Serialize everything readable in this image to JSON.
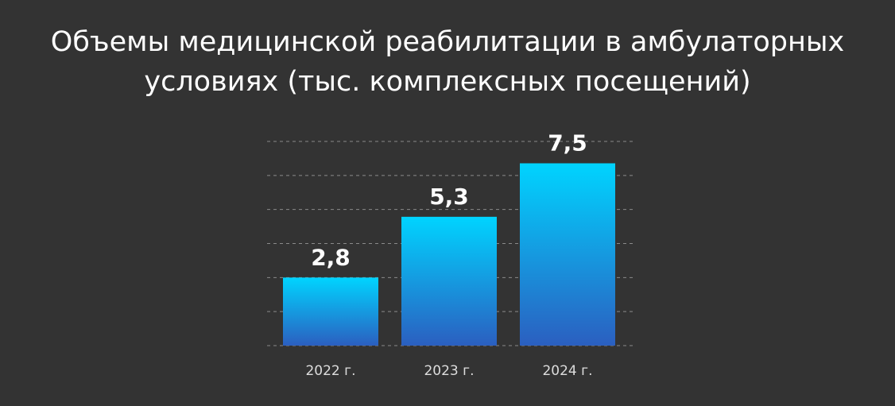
{
  "chart_data": {
    "type": "bar",
    "title": "Объемы медицинской реабилитации в амбулаторных условиях (тыс. комплексных посещений)",
    "categories": [
      "2022 г.",
      "2023 г.",
      "2024 г."
    ],
    "values": [
      2.8,
      5.3,
      7.5
    ],
    "value_labels": [
      "2,8",
      "5,3",
      "7,5"
    ],
    "color": "#00d4ff",
    "ylim": [
      0,
      8.4
    ],
    "yticks": [
      0,
      1.4,
      2.8,
      4.2,
      5.6,
      7,
      8.4
    ],
    "grid": true
  }
}
